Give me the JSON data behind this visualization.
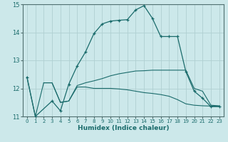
{
  "xlabel": "Humidex (Indice chaleur)",
  "bg_color": "#cce8ea",
  "grid_color": "#b0d0d2",
  "line_color": "#1a6b6b",
  "xlim": [
    -0.5,
    23.5
  ],
  "ylim": [
    11,
    15
  ],
  "yticks": [
    11,
    12,
    13,
    14,
    15
  ],
  "xticks": [
    0,
    1,
    2,
    3,
    4,
    5,
    6,
    7,
    8,
    9,
    10,
    11,
    12,
    13,
    14,
    15,
    16,
    17,
    18,
    19,
    20,
    21,
    22,
    23
  ],
  "line1_x": [
    0,
    1,
    3,
    4,
    5,
    6,
    7,
    8,
    9,
    10,
    11,
    12,
    13,
    14,
    15,
    16,
    17,
    18,
    19,
    20,
    21,
    22,
    23
  ],
  "line1_y": [
    12.4,
    11.0,
    11.55,
    11.2,
    12.15,
    12.8,
    13.3,
    13.95,
    14.3,
    14.4,
    14.43,
    14.45,
    14.8,
    14.95,
    14.5,
    13.85,
    13.85,
    13.85,
    12.6,
    11.9,
    11.65,
    11.35,
    11.35
  ],
  "line2_x": [
    0,
    1,
    2,
    3,
    4,
    5,
    6,
    7,
    8,
    9,
    10,
    11,
    12,
    13,
    14,
    15,
    16,
    17,
    18,
    19,
    20,
    21,
    22,
    23
  ],
  "line2_y": [
    12.4,
    11.0,
    12.2,
    12.2,
    11.5,
    11.55,
    12.05,
    12.05,
    12.0,
    12.0,
    12.0,
    11.98,
    11.95,
    11.9,
    11.85,
    11.82,
    11.78,
    11.72,
    11.6,
    11.45,
    11.4,
    11.38,
    11.37,
    11.36
  ],
  "line3_x": [
    2,
    3,
    4,
    5,
    6,
    7,
    8,
    9,
    10,
    11,
    12,
    13,
    14,
    15,
    16,
    17,
    18,
    19,
    20,
    21,
    22,
    23
  ],
  "line3_y": [
    12.2,
    12.2,
    11.5,
    11.55,
    12.1,
    12.2,
    12.27,
    12.35,
    12.45,
    12.52,
    12.57,
    12.62,
    12.63,
    12.65,
    12.65,
    12.65,
    12.65,
    12.65,
    12.0,
    11.9,
    11.4,
    11.38
  ]
}
